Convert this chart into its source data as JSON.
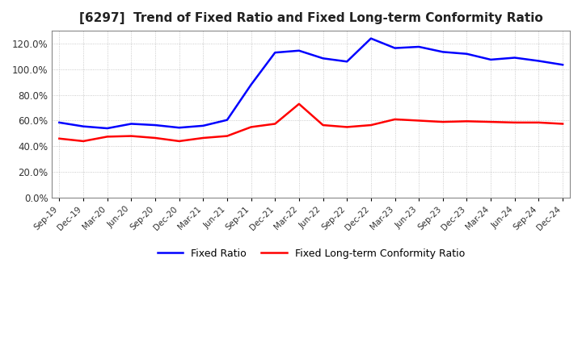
{
  "title": "[6297]  Trend of Fixed Ratio and Fixed Long-term Conformity Ratio",
  "fixed_ratio": {
    "dates": [
      "Sep-19",
      "Dec-19",
      "Mar-20",
      "Jun-20",
      "Sep-20",
      "Dec-20",
      "Mar-21",
      "Jun-21",
      "Sep-21",
      "Dec-21",
      "Mar-22",
      "Jun-22",
      "Sep-22",
      "Dec-22",
      "Mar-23",
      "Jun-23",
      "Sep-23",
      "Dec-23",
      "Mar-24",
      "Jun-24",
      "Sep-24",
      "Dec-24"
    ],
    "values": [
      58.5,
      55.5,
      54.0,
      57.5,
      56.5,
      54.5,
      56.0,
      60.5,
      88.0,
      113.0,
      114.5,
      108.5,
      106.0,
      124.0,
      116.5,
      117.5,
      113.5,
      112.0,
      107.5,
      109.0,
      106.5,
      103.5
    ],
    "color": "#0000FF"
  },
  "fixed_lt_ratio": {
    "dates": [
      "Sep-19",
      "Dec-19",
      "Mar-20",
      "Jun-20",
      "Sep-20",
      "Dec-20",
      "Mar-21",
      "Jun-21",
      "Sep-21",
      "Dec-21",
      "Mar-22",
      "Jun-22",
      "Sep-22",
      "Dec-22",
      "Mar-23",
      "Jun-23",
      "Sep-23",
      "Dec-23",
      "Mar-24",
      "Jun-24",
      "Sep-24",
      "Dec-24"
    ],
    "values": [
      46.0,
      44.0,
      47.5,
      48.0,
      46.5,
      44.0,
      46.5,
      48.0,
      55.0,
      57.5,
      73.0,
      56.5,
      55.0,
      56.5,
      61.0,
      60.0,
      59.0,
      59.5,
      59.0,
      58.5,
      58.5,
      57.5
    ],
    "color": "#FF0000"
  },
  "ylim": [
    0,
    130
  ],
  "yticks": [
    0,
    20,
    40,
    60,
    80,
    100,
    120
  ],
  "legend": {
    "fixed_ratio_label": "Fixed Ratio",
    "fixed_lt_label": "Fixed Long-term Conformity Ratio"
  },
  "background_color": "#FFFFFF",
  "plot_background": "#FFFFFF",
  "grid_color": "#AAAAAA",
  "line_width": 1.8
}
